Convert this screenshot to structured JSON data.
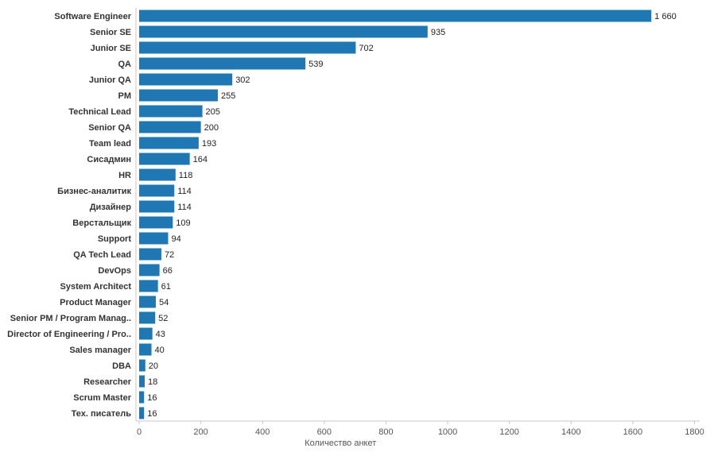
{
  "chart_data": {
    "type": "bar",
    "orientation": "horizontal",
    "categories": [
      "Software Engineer",
      "Senior SE",
      "Junior SE",
      "QA",
      "Junior QA",
      "PM",
      "Technical Lead",
      "Senior QA",
      "Team lead",
      "Сисадмин",
      "HR",
      "Бизнес-аналитик",
      "Дизайнер",
      "Верстальщик",
      "Support",
      "QA Tech Lead",
      "DevOps",
      "System Architect",
      "Product Manager",
      "Senior PM / Program Manag..",
      "Director of Engineering / Pro..",
      "Sales manager",
      "DBA",
      "Researcher",
      "Scrum Master",
      "Тех. писатель"
    ],
    "values": [
      1660,
      935,
      702,
      539,
      302,
      255,
      205,
      200,
      193,
      164,
      118,
      114,
      114,
      109,
      94,
      72,
      66,
      61,
      54,
      52,
      43,
      40,
      20,
      18,
      16,
      16
    ],
    "value_labels": [
      "1 660",
      "935",
      "702",
      "539",
      "302",
      "255",
      "205",
      "200",
      "193",
      "164",
      "118",
      "114",
      "114",
      "109",
      "94",
      "72",
      "66",
      "61",
      "54",
      "52",
      "43",
      "40",
      "20",
      "18",
      "16",
      "16"
    ],
    "xlabel": "Количество анкет",
    "ylabel": "",
    "xlim": [
      0,
      1800
    ],
    "xticks": [
      0,
      200,
      400,
      600,
      800,
      1000,
      1200,
      1400,
      1600,
      1800
    ],
    "grid": false,
    "legend": "none",
    "bar_color": "#1f77b4",
    "axis_color": "#c8c8c8"
  }
}
